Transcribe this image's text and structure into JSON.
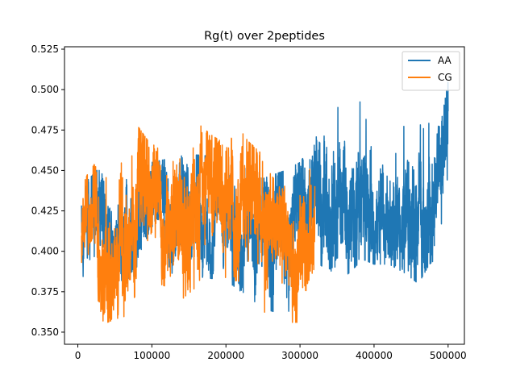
{
  "chart_data": {
    "type": "line",
    "title": "Rg(t) over 2peptides",
    "xlabel": "",
    "ylabel": "",
    "xlim": [
      -18000,
      522000
    ],
    "ylim": [
      0.3425,
      0.5265
    ],
    "xticks": [
      0,
      100000,
      200000,
      300000,
      400000,
      500000
    ],
    "xtick_labels": [
      "0",
      "100000",
      "200000",
      "300000",
      "400000",
      "500000"
    ],
    "yticks": [
      0.35,
      0.375,
      0.4,
      0.425,
      0.45,
      0.475,
      0.5,
      0.525
    ],
    "ytick_labels": [
      "0.350",
      "0.375",
      "0.400",
      "0.425",
      "0.450",
      "0.475",
      "0.500",
      "0.525"
    ],
    "grid": false,
    "legend_position": "top-right",
    "series": [
      {
        "name": "AA",
        "color": "#1f77b4",
        "x_range": [
          5000,
          500000
        ],
        "envelope": [
          [
            5000,
            0.385,
            0.44
          ],
          [
            30000,
            0.378,
            0.452
          ],
          [
            60000,
            0.382,
            0.45
          ],
          [
            100000,
            0.388,
            0.455
          ],
          [
            150000,
            0.385,
            0.46
          ],
          [
            200000,
            0.382,
            0.458
          ],
          [
            250000,
            0.365,
            0.445
          ],
          [
            280000,
            0.36,
            0.45
          ],
          [
            300000,
            0.372,
            0.455
          ],
          [
            315000,
            0.395,
            0.465
          ],
          [
            325000,
            0.392,
            0.488
          ],
          [
            345000,
            0.387,
            0.498
          ],
          [
            365000,
            0.386,
            0.482
          ],
          [
            385000,
            0.395,
            0.495
          ],
          [
            400000,
            0.392,
            0.48
          ],
          [
            420000,
            0.392,
            0.478
          ],
          [
            440000,
            0.387,
            0.485
          ],
          [
            460000,
            0.38,
            0.495
          ],
          [
            475000,
            0.392,
            0.485
          ],
          [
            490000,
            0.398,
            0.478
          ],
          [
            500000,
            0.415,
            0.505
          ]
        ]
      },
      {
        "name": "CG",
        "color": "#ff7f0e",
        "x_range": [
          5000,
          320000
        ],
        "envelope": [
          [
            5000,
            0.38,
            0.439
          ],
          [
            20000,
            0.384,
            0.455
          ],
          [
            35000,
            0.355,
            0.445
          ],
          [
            50000,
            0.358,
            0.448
          ],
          [
            65000,
            0.36,
            0.462
          ],
          [
            80000,
            0.375,
            0.478
          ],
          [
            100000,
            0.382,
            0.465
          ],
          [
            120000,
            0.378,
            0.47
          ],
          [
            140000,
            0.37,
            0.478
          ],
          [
            160000,
            0.378,
            0.48
          ],
          [
            180000,
            0.38,
            0.472
          ],
          [
            200000,
            0.38,
            0.466
          ],
          [
            215000,
            0.382,
            0.478
          ],
          [
            230000,
            0.378,
            0.468
          ],
          [
            245000,
            0.36,
            0.462
          ],
          [
            260000,
            0.356,
            0.448
          ],
          [
            275000,
            0.357,
            0.438
          ],
          [
            290000,
            0.356,
            0.446
          ],
          [
            300000,
            0.356,
            0.452
          ],
          [
            310000,
            0.38,
            0.468
          ],
          [
            320000,
            0.39,
            0.46
          ]
        ]
      }
    ]
  }
}
